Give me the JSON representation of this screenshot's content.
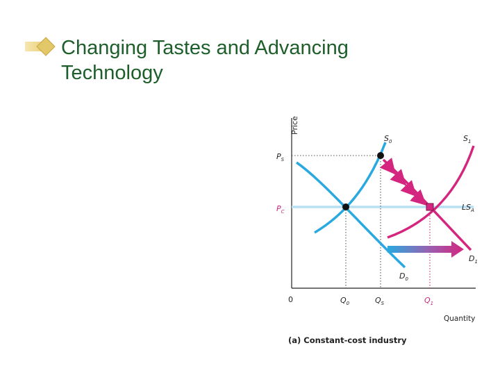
{
  "slide": {
    "title_line1": "Changing Tastes and Advancing",
    "title_line2": "Technology",
    "title_color": "#1e5e2a",
    "bullet_icon": "diamond-bullet-icon"
  },
  "diagram": {
    "y_axis_label": "Price",
    "x_axis_label": "Quantity",
    "origin": "0",
    "price_labels": {
      "ps": "P",
      "ps_sub": "S",
      "pc": "P",
      "pc_sub": "C"
    },
    "quantity_labels": {
      "q0": "Q",
      "q0_sub": "0",
      "qs": "Q",
      "qs_sub": "S",
      "q1": "Q",
      "q1_sub": "1"
    },
    "curve_labels": {
      "s0": "S",
      "s0_sub": "0",
      "s1": "S",
      "s1_sub": "1",
      "lsa": "LS",
      "lsa_sub": "A",
      "d0": "D",
      "d0_sub": "0",
      "d1": "D",
      "d1_sub": "1"
    },
    "caption_prefix": "(a) ",
    "caption": "Constant-cost industry",
    "colors": {
      "blue": "#29a9e0",
      "pink": "#d4267f",
      "lsa": "#b8dff2",
      "dots": "#555555"
    }
  }
}
